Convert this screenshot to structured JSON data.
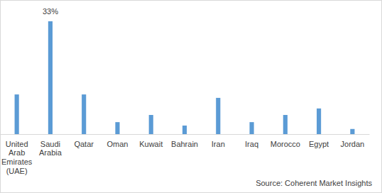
{
  "chart_data": {
    "type": "bar",
    "categories": [
      "United Arab Emirates (UAE)",
      "Saudi Arabia",
      "Qatar",
      "Oman",
      "Kuwait",
      "Bahrain",
      "Iran",
      "Iraq",
      "Morocco",
      "Egypt",
      "Jordan"
    ],
    "values": [
      11.6,
      33,
      11.6,
      3.5,
      5.6,
      2.5,
      10.6,
      3.5,
      5.6,
      7.5,
      1.5
    ],
    "value_labels": [
      null,
      "33%",
      null,
      null,
      null,
      null,
      null,
      null,
      null,
      null,
      null
    ],
    "data_labels": true,
    "color": "#5b9bd5",
    "ylim": [
      0,
      33
    ],
    "grid": false,
    "tick_labels": "x",
    "annotations": [
      "Source: Coherent Market Insights"
    ]
  }
}
